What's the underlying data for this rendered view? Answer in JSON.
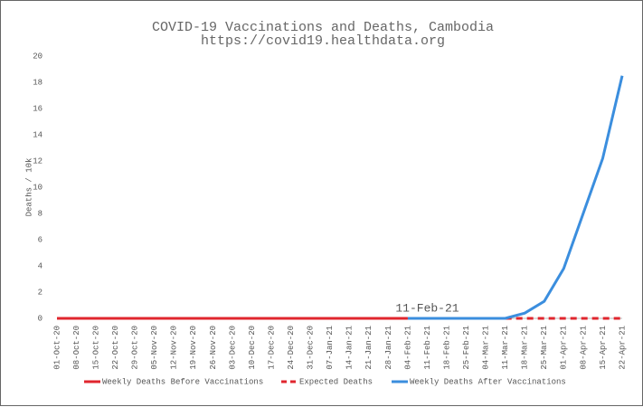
{
  "chart_data": {
    "type": "line",
    "title": "COVID-19 Vaccinations and Deaths, Cambodia",
    "subtitle": "https://covid19.healthdata.org",
    "y_label": "Deaths / 10k",
    "annotation": "11-Feb-21",
    "categories": [
      "01-Oct-20",
      "08-Oct-20",
      "15-Oct-20",
      "22-Oct-20",
      "29-Oct-20",
      "05-Nov-20",
      "12-Nov-20",
      "19-Nov-20",
      "26-Nov-20",
      "03-Dec-20",
      "10-Dec-20",
      "17-Dec-20",
      "24-Dec-20",
      "31-Dec-20",
      "07-Jan-21",
      "14-Jan-21",
      "21-Jan-21",
      "28-Jan-21",
      "04-Feb-21",
      "11-Feb-21",
      "18-Feb-21",
      "25-Feb-21",
      "04-Mar-21",
      "11-Mar-21",
      "18-Mar-21",
      "25-Mar-21",
      "01-Apr-21",
      "08-Apr-21",
      "15-Apr-21",
      "22-Apr-21"
    ],
    "series": [
      {
        "name": "Weekly Deaths Before Vaccinations",
        "color": "#e0262e",
        "dash": false,
        "values": [
          0,
          0,
          0,
          0,
          0,
          0,
          0,
          0,
          0,
          0,
          0,
          0,
          0,
          0,
          0,
          0,
          0,
          0,
          0,
          null,
          null,
          null,
          null,
          null,
          null,
          null,
          null,
          null,
          null,
          null
        ]
      },
      {
        "name": "Expected Deaths",
        "color": "#e0262e",
        "dash": true,
        "values": [
          null,
          null,
          null,
          null,
          null,
          null,
          null,
          null,
          null,
          null,
          null,
          null,
          null,
          null,
          null,
          null,
          null,
          null,
          null,
          null,
          null,
          null,
          null,
          0,
          0,
          0,
          0,
          0,
          0,
          0
        ]
      },
      {
        "name": "Weekly Deaths After Vaccinations",
        "color": "#3b8ede",
        "dash": false,
        "values": [
          null,
          null,
          null,
          null,
          null,
          null,
          null,
          null,
          null,
          null,
          null,
          null,
          null,
          null,
          null,
          null,
          null,
          null,
          0,
          0,
          0,
          0,
          0,
          0,
          0.4,
          1.3,
          3.8,
          8.0,
          12.2,
          18.5
        ]
      }
    ],
    "ylim": [
      0,
      20
    ],
    "yticks": [
      0,
      2,
      4,
      6,
      8,
      10,
      12,
      14,
      16,
      18,
      20
    ]
  }
}
